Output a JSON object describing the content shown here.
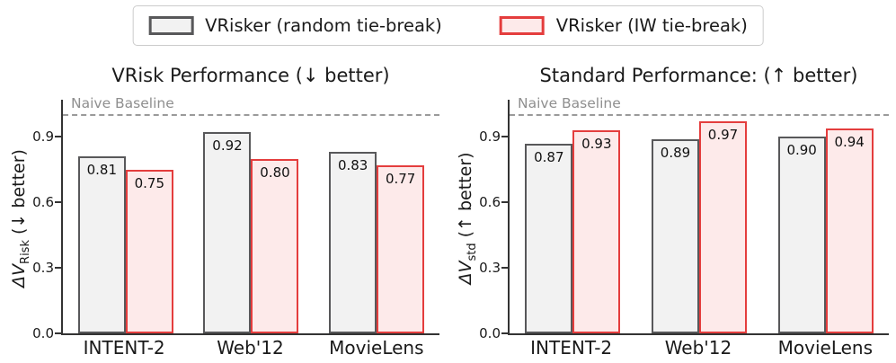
{
  "legend": {
    "items": [
      {
        "label": "VRisker (random tie-break)",
        "fill": "#f2f2f2",
        "edge": "#58585a"
      },
      {
        "label": "VRisker (IW tie-break)",
        "fill": "#fdeaea",
        "edge": "#e43d3d"
      }
    ]
  },
  "colors": {
    "axis_spine": "#333333",
    "baseline_line": "#9a9a9a",
    "baseline_text": "#8f8f8f",
    "gray_bar_fill": "#f2f2f2",
    "gray_bar_edge": "#58585a",
    "red_bar_fill": "#fdeaea",
    "red_bar_edge": "#e43d3d"
  },
  "chart_data": [
    {
      "type": "bar",
      "title": "VRisk Performance (↓ better)",
      "ylabel": "ΔV_Risk (↓ better)",
      "ylabel_prefix": "ΔV",
      "ylabel_sub": "Risk",
      "ylabel_suffix": " (↓ better)",
      "categories": [
        "INTENT-2",
        "Web'12",
        "MovieLens"
      ],
      "series": [
        {
          "name": "VRisker (random tie-break)",
          "values": [
            0.81,
            0.92,
            0.83
          ]
        },
        {
          "name": "VRisker (IW tie-break)",
          "values": [
            0.75,
            0.8,
            0.77
          ]
        }
      ],
      "yticks": [
        0.0,
        0.3,
        0.6,
        0.9
      ],
      "ytick_labels": [
        "0.0",
        "0.3",
        "0.6",
        "0.9"
      ],
      "ylim": [
        0,
        1.07
      ],
      "grid": false,
      "baseline": {
        "label": "Naive Baseline",
        "value": 1.0
      }
    },
    {
      "type": "bar",
      "title": "Standard Performance: (↑ better)",
      "ylabel": "ΔV_std (↑ better)",
      "ylabel_prefix": "ΔV",
      "ylabel_sub": "std",
      "ylabel_suffix": " (↑ better)",
      "categories": [
        "INTENT-2",
        "Web'12",
        "MovieLens"
      ],
      "series": [
        {
          "name": "VRisker (random tie-break)",
          "values": [
            0.87,
            0.89,
            0.9
          ]
        },
        {
          "name": "VRisker (IW tie-break)",
          "values": [
            0.93,
            0.97,
            0.94
          ]
        }
      ],
      "yticks": [
        0.0,
        0.3,
        0.6,
        0.9
      ],
      "ytick_labels": [
        "0.0",
        "0.3",
        "0.6",
        "0.9"
      ],
      "ylim": [
        0,
        1.07
      ],
      "grid": false,
      "baseline": {
        "label": "Naive Baseline",
        "value": 1.0
      }
    }
  ]
}
